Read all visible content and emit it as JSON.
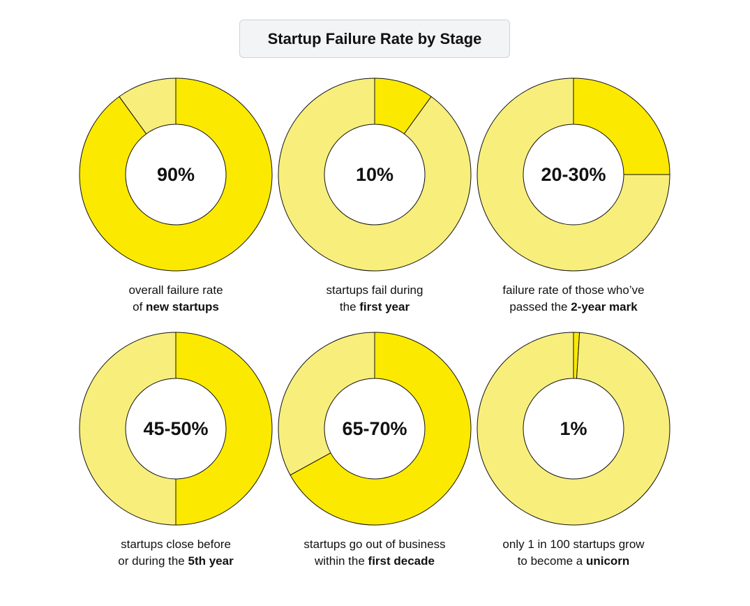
{
  "chart_data": {
    "type": "pie",
    "title": "Startup Failure Rate by Stage",
    "colors": {
      "highlight": "#FCE900",
      "remainder": "#F8EE7C",
      "stroke": "#111111"
    },
    "donuts": [
      {
        "label": "90%",
        "value": 90,
        "caption_pre": "overall failure rate",
        "caption_mid": "of ",
        "caption_bold": "new startups"
      },
      {
        "label": "10%",
        "value": 10,
        "caption_pre": "startups fail during",
        "caption_mid": "the ",
        "caption_bold": "first year"
      },
      {
        "label": "20-30%",
        "value": 25,
        "caption_pre": "failure rate of those who’ve",
        "caption_mid": "passed the ",
        "caption_bold": "2-year mark"
      },
      {
        "label": "45-50%",
        "value": 50,
        "caption_pre": "startups close before",
        "caption_mid": "or during the ",
        "caption_bold": "5th year"
      },
      {
        "label": "65-70%",
        "value": 67,
        "caption_pre": "startups go out of business",
        "caption_mid": "within the ",
        "caption_bold": "first decade"
      },
      {
        "label": "1%",
        "value": 1,
        "caption_pre": "only 1 in 100 startups grow",
        "caption_mid": "to become a ",
        "caption_bold": "unicorn"
      }
    ]
  }
}
